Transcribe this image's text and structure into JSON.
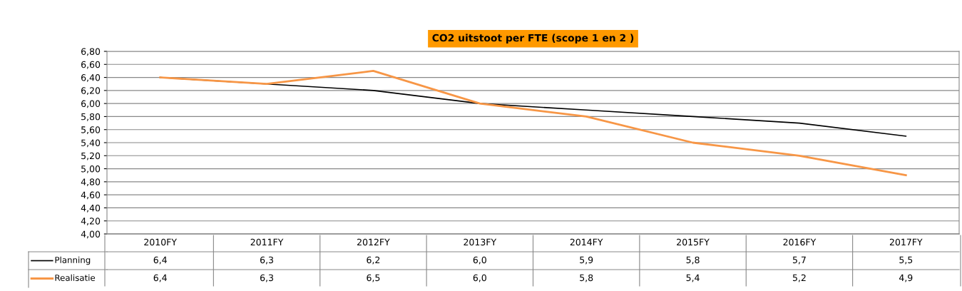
{
  "chart_data": {
    "type": "line",
    "title": "CO2 uitstoot per FTE (scope 1 en 2 )",
    "categories": [
      "2010FY",
      "2011FY",
      "2012FY",
      "2013FY",
      "2014FY",
      "2015FY",
      "2016FY",
      "2017FY"
    ],
    "series": [
      {
        "name": "Planning",
        "color": "#000000",
        "values": [
          6.4,
          6.3,
          6.2,
          6.0,
          5.9,
          5.8,
          5.7,
          5.5
        ],
        "value_labels": [
          "6,4",
          "6,3",
          "6,2",
          "6,0",
          "5,9",
          "5,8",
          "5,7",
          "5,5"
        ]
      },
      {
        "name": "Realisatie",
        "color": "#f79646",
        "values": [
          6.4,
          6.3,
          6.5,
          6.0,
          5.8,
          5.4,
          5.2,
          4.9
        ],
        "value_labels": [
          "6,4",
          "6,3",
          "6,5",
          "6,0",
          "5,8",
          "5,4",
          "5,2",
          "4,9"
        ]
      }
    ],
    "ylim": [
      4.0,
      6.8
    ],
    "yticks": [
      {
        "value": 4.0,
        "label": "4,00"
      },
      {
        "value": 4.2,
        "label": "4,20"
      },
      {
        "value": 4.4,
        "label": "4,40"
      },
      {
        "value": 4.6,
        "label": "4,60"
      },
      {
        "value": 4.8,
        "label": "4,80"
      },
      {
        "value": 5.0,
        "label": "5,00"
      },
      {
        "value": 5.2,
        "label": "5,20"
      },
      {
        "value": 5.4,
        "label": "5,40"
      },
      {
        "value": 5.6,
        "label": "5,60"
      },
      {
        "value": 5.8,
        "label": "5,80"
      },
      {
        "value": 6.0,
        "label": "6,00"
      },
      {
        "value": 6.2,
        "label": "6,20"
      },
      {
        "value": 6.4,
        "label": "6,40"
      },
      {
        "value": 6.6,
        "label": "6,60"
      },
      {
        "value": 6.8,
        "label": "6,80"
      }
    ],
    "grid": "y",
    "legend": "bottom",
    "marker": "none",
    "line_style": "solid"
  }
}
